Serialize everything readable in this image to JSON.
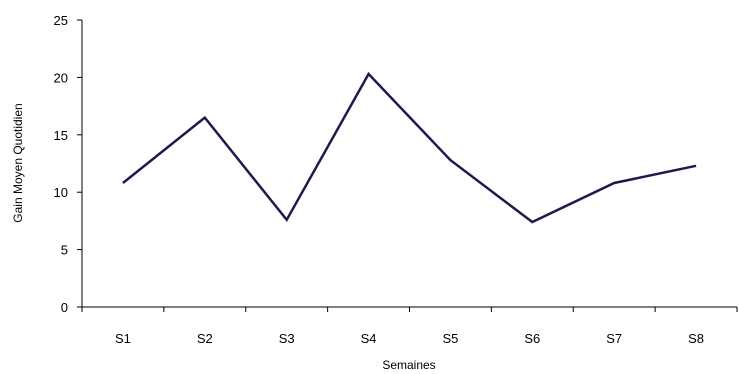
{
  "chart_data": {
    "type": "line",
    "title": "",
    "xlabel": "Semaines",
    "ylabel": "Gain Moyen Quotidien",
    "categories": [
      "S1",
      "S2",
      "S3",
      "S4",
      "S5",
      "S6",
      "S7",
      "S8"
    ],
    "series": [
      {
        "values": [
          10.8,
          16.5,
          7.6,
          20.3,
          12.8,
          7.4,
          10.8,
          12.3
        ],
        "color": "#1f1a4d"
      }
    ],
    "ylim": [
      0,
      25
    ],
    "yticks": [
      0,
      5,
      10,
      15,
      20,
      25
    ],
    "grid": false,
    "legend": "none"
  }
}
